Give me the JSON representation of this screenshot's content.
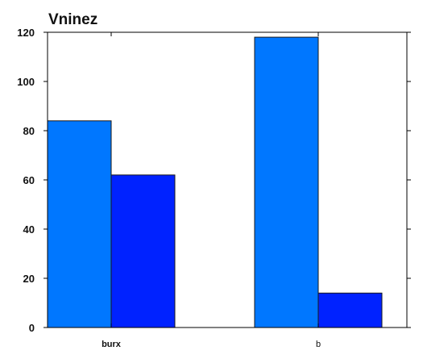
{
  "chart_data": {
    "type": "bar",
    "title": "Vninez",
    "categories": [
      "burx",
      "b"
    ],
    "series": [
      {
        "values": [
          84,
          118
        ],
        "color": "#0077ff"
      },
      {
        "values": [
          62,
          14
        ],
        "color": "#0022ff"
      }
    ],
    "ylim": [
      0,
      120
    ],
    "yticks": [
      0,
      20,
      40,
      60,
      80,
      100,
      120
    ],
    "grid": false,
    "legend": "none"
  }
}
